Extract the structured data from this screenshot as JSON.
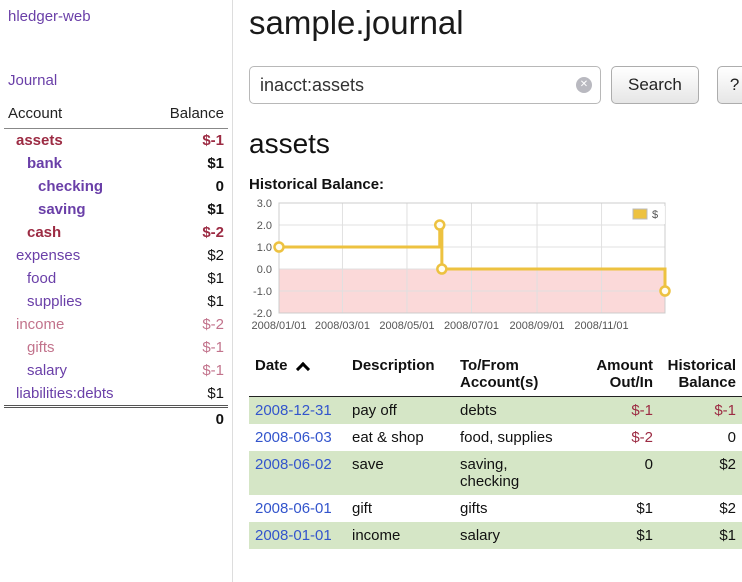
{
  "app_title": "hledger-web",
  "colors": {
    "link": "#6a3fa8",
    "date": "#3355cc",
    "neg": "#9c2b43",
    "negsoft": "#c2738c",
    "green": "#d5e6c6",
    "gold": "#edc240",
    "pink": "#fbd9d9",
    "grid": "#e0e0e0"
  },
  "sidebar": {
    "journal_label": "Journal",
    "accounts_header": {
      "account": "Account",
      "balance": "Balance"
    },
    "accounts": [
      {
        "name": "assets",
        "balance": "$-1",
        "level": 1,
        "bold": true,
        "name_color": "neg",
        "balance_color": "neg"
      },
      {
        "name": "bank",
        "balance": "$1",
        "level": 2,
        "bold": true,
        "name_color": "link",
        "balance_color": "normal"
      },
      {
        "name": "checking",
        "balance": "0",
        "level": 3,
        "bold": true,
        "name_color": "link",
        "balance_color": "normal"
      },
      {
        "name": "saving",
        "balance": "$1",
        "level": 3,
        "bold": true,
        "name_color": "link",
        "balance_color": "normal"
      },
      {
        "name": "cash",
        "balance": "$-2",
        "level": 2,
        "bold": true,
        "name_color": "neg",
        "balance_color": "neg"
      },
      {
        "name": "expenses",
        "balance": "$2",
        "level": 1,
        "bold": false,
        "name_color": "link",
        "balance_color": "normal"
      },
      {
        "name": "food",
        "balance": "$1",
        "level": 2,
        "bold": false,
        "name_color": "link",
        "balance_color": "normal"
      },
      {
        "name": "supplies",
        "balance": "$1",
        "level": 2,
        "bold": false,
        "name_color": "link",
        "balance_color": "normal"
      },
      {
        "name": "income",
        "balance": "$-2",
        "level": 1,
        "bold": false,
        "name_color": "negsoft",
        "balance_color": "negsoft"
      },
      {
        "name": "gifts",
        "balance": "$-1",
        "level": 2,
        "bold": false,
        "name_color": "negsoft",
        "balance_color": "negsoft"
      },
      {
        "name": "salary",
        "balance": "$-1",
        "level": 2,
        "bold": false,
        "name_color": "link",
        "balance_color": "negsoft"
      },
      {
        "name": "liabilities:debts",
        "balance": "$1",
        "level": 1,
        "bold": false,
        "name_color": "link",
        "balance_color": "normal"
      }
    ],
    "total": "0"
  },
  "main": {
    "title": "sample.journal",
    "search": {
      "value": "inacct:assets",
      "clear_icon": "✕",
      "button_label": "Search",
      "help_label": "?"
    },
    "account_heading": "assets",
    "chart_title": "Historical Balance:"
  },
  "chart_data": {
    "type": "line",
    "title": "Historical Balance:",
    "ylim": [
      -2.0,
      3.0
    ],
    "yticks": [
      "3.0",
      "2.0",
      "1.0",
      "0.0",
      "-1.0",
      "-2.0"
    ],
    "xticks": [
      {
        "label": "2008/01/01",
        "day": 0
      },
      {
        "label": "2008/03/01",
        "day": 60
      },
      {
        "label": "2008/05/01",
        "day": 121
      },
      {
        "label": "2008/07/01",
        "day": 182
      },
      {
        "label": "2008/09/01",
        "day": 244
      },
      {
        "label": "2008/11/01",
        "day": 305
      }
    ],
    "x_range_days": [
      0,
      365
    ],
    "legend": [
      {
        "label": "$",
        "color": "#edc240"
      }
    ],
    "series": [
      {
        "name": "$",
        "color": "#edc240",
        "step_points": [
          {
            "date": "2008-01-01",
            "day": 0,
            "value": 1,
            "marker": true
          },
          {
            "date": "2008-06-01",
            "day": 152,
            "value": 1,
            "marker": false
          },
          {
            "date": "2008-06-01",
            "day": 152,
            "value": 2,
            "marker": true
          },
          {
            "date": "2008-06-03",
            "day": 154,
            "value": 2,
            "marker": false
          },
          {
            "date": "2008-06-03",
            "day": 154,
            "value": 0,
            "marker": true
          },
          {
            "date": "2008-12-31",
            "day": 365,
            "value": 0,
            "marker": false
          },
          {
            "date": "2008-12-31",
            "day": 365,
            "value": -1,
            "marker": true
          }
        ]
      }
    ],
    "negative_fill": "#fbd9d9",
    "grid_color": "#e0e0e0"
  },
  "register": {
    "headers": [
      {
        "line1": "Date",
        "line2": ""
      },
      {
        "line1": "Description",
        "line2": ""
      },
      {
        "line1": "To/From",
        "line2": "Account(s)"
      },
      {
        "line1": "Amount",
        "line2": "Out/In"
      },
      {
        "line1": "Historical",
        "line2": "Balance"
      }
    ],
    "rows": [
      {
        "date": "2008-12-31",
        "description": "pay off",
        "accounts": "debts",
        "amount": "$-1",
        "amount_negative": true,
        "balance": "$-1",
        "balance_negative": true,
        "shaded": true
      },
      {
        "date": "2008-06-03",
        "description": "eat & shop",
        "accounts": "food, supplies",
        "amount": "$-2",
        "amount_negative": true,
        "balance": "0",
        "balance_negative": false,
        "shaded": false
      },
      {
        "date": "2008-06-02",
        "description": "save",
        "accounts": "saving,\nchecking",
        "amount": "0",
        "amount_negative": false,
        "balance": "$2",
        "balance_negative": false,
        "shaded": true
      },
      {
        "date": "2008-06-01",
        "description": "gift",
        "accounts": "gifts",
        "amount": "$1",
        "amount_negative": false,
        "balance": "$2",
        "balance_negative": false,
        "shaded": false
      },
      {
        "date": "2008-01-01",
        "description": "income",
        "accounts": "salary",
        "amount": "$1",
        "amount_negative": false,
        "balance": "$1",
        "balance_negative": false,
        "shaded": true
      }
    ]
  }
}
